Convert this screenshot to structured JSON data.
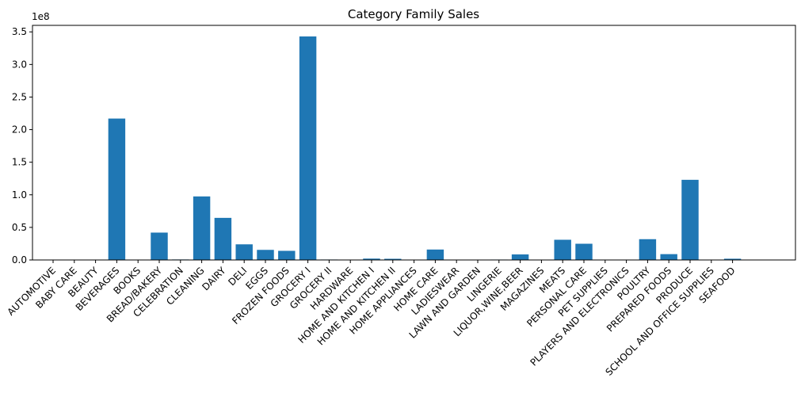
{
  "chart_data": {
    "type": "bar",
    "title": "Category Family Sales",
    "xlabel": "",
    "ylabel": "",
    "y_multiplier_label": "1e8",
    "ylim": [
      0,
      3.6
    ],
    "y_ticks": [
      0.0,
      0.5,
      1.0,
      1.5,
      2.0,
      2.5,
      3.0,
      3.5
    ],
    "y_tick_labels": [
      "0.0",
      "0.5",
      "1.0",
      "1.5",
      "2.0",
      "2.5",
      "3.0",
      "3.5"
    ],
    "bar_color": "#1f77b4",
    "grid": false,
    "categories": [
      "AUTOMOTIVE",
      "BABY CARE",
      "BEAUTY",
      "BEVERAGES",
      "BOOKS",
      "BREAD/BAKERY",
      "CELEBRATION",
      "CLEANING",
      "DAIRY",
      "DELI",
      "EGGS",
      "FROZEN FOODS",
      "GROCERY I",
      "GROCERY II",
      "HARDWARE",
      "HOME AND KITCHEN I",
      "HOME AND KITCHEN II",
      "HOME APPLIANCES",
      "HOME CARE",
      "LADIESWEAR",
      "LAWN AND GARDEN",
      "LINGERIE",
      "LIQUOR,WINE,BEER",
      "MAGAZINES",
      "MEATS",
      "PERSONAL CARE",
      "PET SUPPLIES",
      "PLAYERS AND ELECTRONICS",
      "POULTRY",
      "PREPARED FOODS",
      "PRODUCE",
      "SCHOOL AND OFFICE SUPPLIES",
      "SEAFOOD"
    ],
    "values": [
      0.0055,
      0.0001,
      0.0034,
      2.17,
      1e-05,
      0.42,
      0.0076,
      0.975,
      0.646,
      0.24,
      0.155,
      0.14,
      3.43,
      0.0069,
      0.001,
      0.021,
      0.018,
      6e-05,
      0.16,
      0.0009,
      0.0055,
      0.0065,
      0.085,
      0.0044,
      0.31,
      0.249,
      0.0032,
      0.0058,
      0.319,
      0.0895,
      1.23,
      0.0011,
      0.019
    ]
  }
}
